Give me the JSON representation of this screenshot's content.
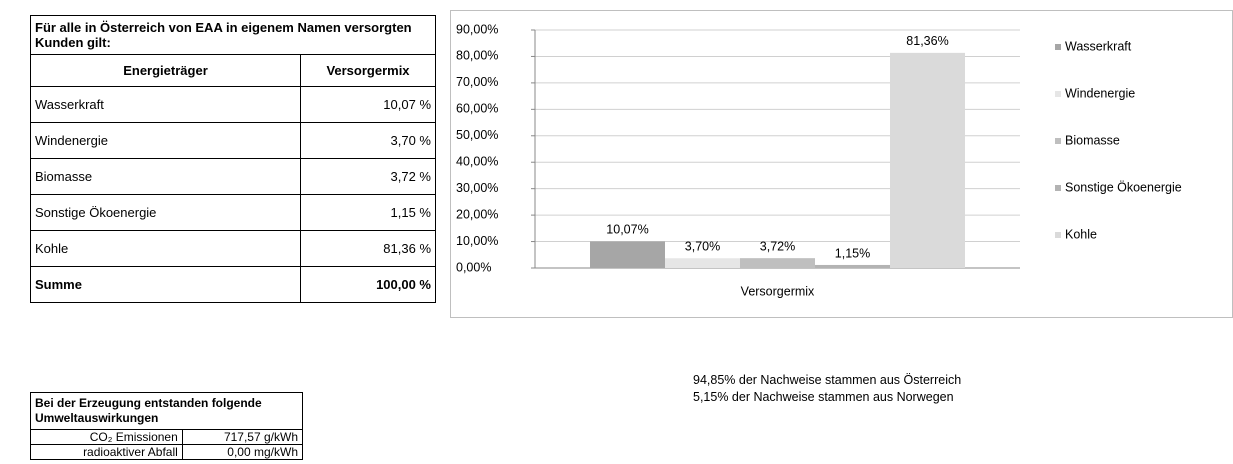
{
  "table1": {
    "title": "Für alle in Österreich von EAA in eigenem Namen versorgten Kunden gilt:",
    "columns": [
      "Energieträger",
      "Versorgermix"
    ],
    "rows": [
      [
        "Wasserkraft",
        "10,07 %"
      ],
      [
        "Windenergie",
        "3,70 %"
      ],
      [
        "Biomasse",
        "3,72 %"
      ],
      [
        "Sonstige Ökoenergie",
        "1,15 %"
      ],
      [
        "Kohle",
        "81,36 %"
      ]
    ],
    "total": [
      "Summe",
      "100,00 %"
    ]
  },
  "chart_data": {
    "type": "bar",
    "categories": [
      "Versorgermix"
    ],
    "series": [
      {
        "name": "Wasserkraft",
        "color": "#a6a6a6",
        "values": [
          10.07
        ],
        "value_labels": [
          "10,07%"
        ]
      },
      {
        "name": "Windenergie",
        "color": "#e6e6e6",
        "values": [
          3.7
        ],
        "value_labels": [
          "3,70%"
        ]
      },
      {
        "name": "Biomasse",
        "color": "#bfbfbf",
        "values": [
          3.72
        ],
        "value_labels": [
          "3,72%"
        ]
      },
      {
        "name": "Sonstige Ökoenergie",
        "color": "#b3b3b3",
        "values": [
          1.15
        ],
        "value_labels": [
          "1,15%"
        ]
      },
      {
        "name": "Kohle",
        "color": "#dadada",
        "values": [
          81.36
        ],
        "value_labels": [
          "81,36%"
        ]
      }
    ],
    "ylim": [
      0,
      90
    ],
    "yticks": [
      {
        "value": 0,
        "label": "0,00%"
      },
      {
        "value": 10,
        "label": "10,00%"
      },
      {
        "value": 20,
        "label": "20,00%"
      },
      {
        "value": 30,
        "label": "30,00%"
      },
      {
        "value": 40,
        "label": "40,00%"
      },
      {
        "value": 50,
        "label": "50,00%"
      },
      {
        "value": 60,
        "label": "60,00%"
      },
      {
        "value": 70,
        "label": "70,00%"
      },
      {
        "value": 80,
        "label": "80,00%"
      },
      {
        "value": 90,
        "label": "90,00%"
      }
    ],
    "grid": true,
    "legend": "right"
  },
  "table2": {
    "title": "Bei der Erzeugung entstanden folgende Umweltauswirkungen",
    "rows": [
      [
        "CO₂ Emissionen",
        "717,57 g/kWh"
      ],
      [
        "radioaktiver Abfall",
        "0,00 mg/kWh"
      ]
    ]
  },
  "notes": [
    "94,85% der Nachweise stammen aus Österreich",
    "5,15% der Nachweise stammen aus Norwegen"
  ]
}
